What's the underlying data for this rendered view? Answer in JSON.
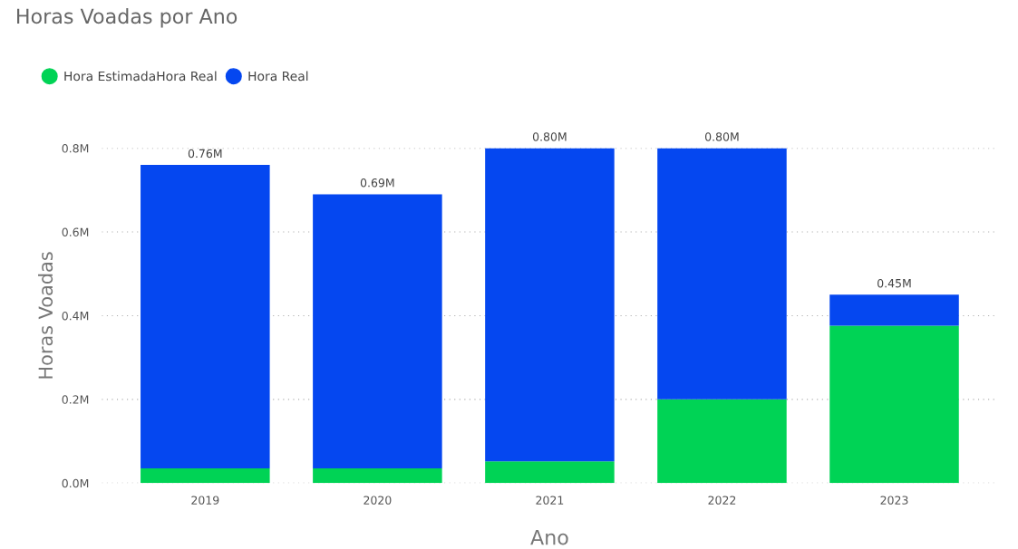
{
  "chart_data": {
    "type": "bar",
    "title": "Horas Voadas por Ano",
    "xlabel": "Ano",
    "ylabel": "Horas Voadas",
    "categories": [
      "2019",
      "2020",
      "2021",
      "2022",
      "2023"
    ],
    "stacked": true,
    "series": [
      {
        "name": "Hora EstimadaHora Real",
        "color": "#00d355",
        "values": [
          0.035,
          0.035,
          0.052,
          0.2,
          0.376
        ]
      },
      {
        "name": "Hora Real",
        "color": "#0547f0",
        "values": [
          0.725,
          0.655,
          0.748,
          0.6,
          0.074
        ]
      }
    ],
    "totals": [
      "0.76M",
      "0.69M",
      "0.80M",
      "0.80M",
      "0.45M"
    ],
    "ylim": [
      0,
      0.8
    ],
    "yticks": [
      {
        "value": 0,
        "label": "0.0M"
      },
      {
        "value": 0.2,
        "label": "0.2M"
      },
      {
        "value": 0.4,
        "label": "0.4M"
      },
      {
        "value": 0.6,
        "label": "0.6M"
      },
      {
        "value": 0.8,
        "label": "0.8M"
      }
    ],
    "grid": "y",
    "legend": "top left"
  }
}
